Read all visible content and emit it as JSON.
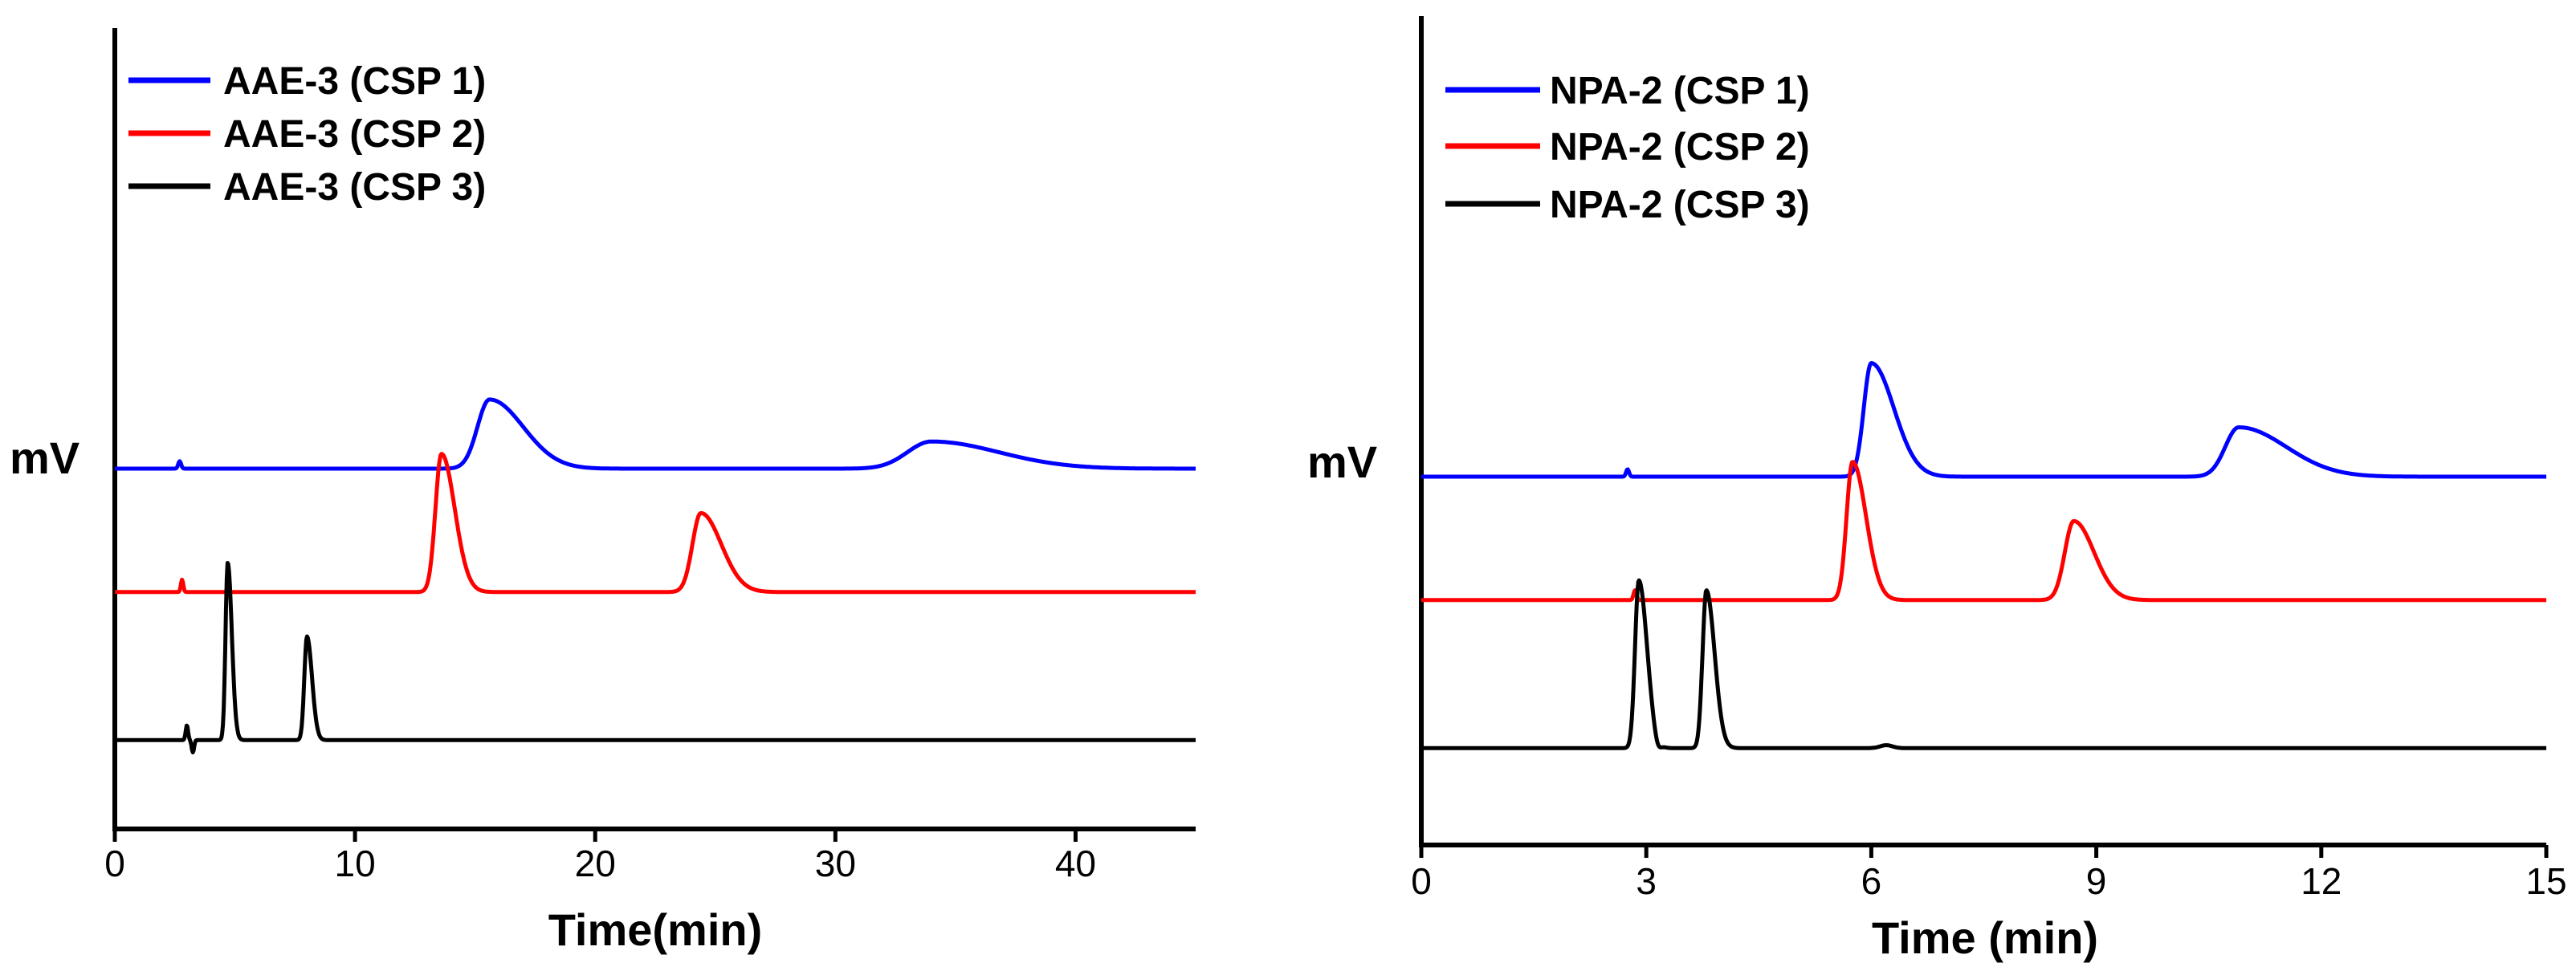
{
  "chart_data": [
    {
      "type": "line",
      "title": "",
      "xlabel": "Time(min)",
      "ylabel": "mV",
      "xlim": [
        0,
        45
      ],
      "xticks": [
        0,
        10,
        20,
        30,
        40
      ],
      "xtick_labels": [
        "0",
        "10",
        "20",
        "30",
        "40"
      ],
      "grid": false,
      "legend_position": "top-left",
      "series": [
        {
          "name": "AAE-3 (CSP 1)",
          "color": "#0000ff",
          "baseline": 6.0,
          "glitches": [
            {
              "t": 2.7,
              "h": 0.15,
              "w": 0.06
            }
          ],
          "peaks": [
            {
              "t": 15.6,
              "h": 1.4,
              "w": 0.5,
              "tail": 0.9
            },
            {
              "t": 34.0,
              "h": 0.55,
              "w": 1.0,
              "tail": 1.8
            }
          ]
        },
        {
          "name": "AAE-3 (CSP 2)",
          "color": "#ff0000",
          "baseline": 3.5,
          "glitches": [
            {
              "t": 2.8,
              "h": 0.25,
              "w": 0.05
            }
          ],
          "peaks": [
            {
              "t": 13.6,
              "h": 2.8,
              "w": 0.25,
              "tail": 0.3
            },
            {
              "t": 24.4,
              "h": 1.6,
              "w": 0.35,
              "tail": 0.5
            }
          ]
        },
        {
          "name": "AAE-3 (CSP 3)",
          "color": "#000000",
          "baseline": 0.5,
          "glitches": [
            {
              "t": 3.0,
              "h": 0.3,
              "w": 0.05
            },
            {
              "t": 3.25,
              "h": -0.25,
              "w": 0.05
            }
          ],
          "peaks": [
            {
              "t": 4.7,
              "h": 3.6,
              "w": 0.09,
              "tail": 0.08
            },
            {
              "t": 8.0,
              "h": 2.1,
              "w": 0.11,
              "tail": 0.1
            }
          ]
        }
      ]
    },
    {
      "type": "line",
      "title": "",
      "xlabel": "Time (min)",
      "ylabel": "mV",
      "xlim": [
        0,
        15
      ],
      "xticks": [
        0,
        3,
        6,
        9,
        12,
        15
      ],
      "xtick_labels": [
        "0",
        "3",
        "6",
        "9",
        "12",
        "15"
      ],
      "grid": false,
      "legend_position": "top-left",
      "series": [
        {
          "name": "NPA-2 (CSP 1)",
          "color": "#0000ff",
          "baseline": 6.0,
          "glitches": [
            {
              "t": 2.75,
              "h": 0.15,
              "w": 0.02
            }
          ],
          "peaks": [
            {
              "t": 6.0,
              "h": 2.3,
              "w": 0.1,
              "tail": 0.2
            },
            {
              "t": 10.9,
              "h": 1.0,
              "w": 0.18,
              "tail": 0.45
            }
          ]
        },
        {
          "name": "NPA-2 (CSP 2)",
          "color": "#ff0000",
          "baseline": 3.5,
          "glitches": [
            {
              "t": 2.85,
              "h": 0.2,
              "w": 0.02
            }
          ],
          "peaks": [
            {
              "t": 5.75,
              "h": 2.8,
              "w": 0.08,
              "tail": 0.1
            },
            {
              "t": 8.7,
              "h": 1.6,
              "w": 0.12,
              "tail": 0.15
            }
          ]
        },
        {
          "name": "NPA-2 (CSP 3)",
          "color": "#000000",
          "baseline": 0.5,
          "glitches": [
            {
              "t": 3.15,
              "h": -0.15,
              "w": 0.04
            },
            {
              "t": 6.2,
              "h": 0.06,
              "w": 0.08
            }
          ],
          "peaks": [
            {
              "t": 2.9,
              "h": 3.4,
              "w": 0.05,
              "tail": 0.06
            },
            {
              "t": 3.8,
              "h": 3.2,
              "w": 0.05,
              "tail": 0.06
            }
          ]
        }
      ]
    }
  ]
}
